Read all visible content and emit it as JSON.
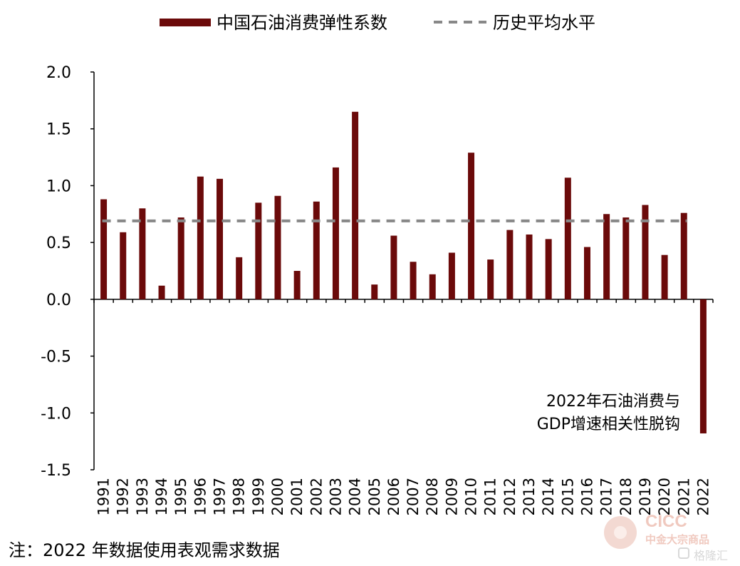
{
  "chart_data": {
    "type": "bar",
    "legend": [
      {
        "label": "中国石油消费弹性系数",
        "style": "bar",
        "color": "#6b0a0a"
      },
      {
        "label": "历史平均水平",
        "style": "dashed-line",
        "color": "#888888"
      }
    ],
    "legend_position": "top",
    "categories": [
      "1991",
      "1992",
      "1993",
      "1994",
      "1995",
      "1996",
      "1997",
      "1998",
      "1999",
      "2000",
      "2001",
      "2002",
      "2003",
      "2004",
      "2005",
      "2006",
      "2007",
      "2008",
      "2009",
      "2010",
      "2011",
      "2012",
      "2013",
      "2014",
      "2015",
      "2016",
      "2017",
      "2018",
      "2019",
      "2020",
      "2021",
      "2022"
    ],
    "series": [
      {
        "name": "中国石油消费弹性系数",
        "values": [
          0.88,
          0.59,
          0.8,
          0.12,
          0.72,
          1.08,
          1.06,
          0.37,
          0.85,
          0.91,
          0.25,
          0.86,
          1.16,
          1.65,
          0.13,
          0.56,
          0.33,
          0.22,
          0.41,
          1.29,
          0.35,
          0.61,
          0.57,
          0.53,
          1.07,
          0.46,
          0.75,
          0.72,
          0.83,
          0.39,
          0.76,
          -1.18
        ]
      }
    ],
    "average": {
      "name": "历史平均水平",
      "value": 0.69
    },
    "ylim": [
      -1.5,
      2.0
    ],
    "yticks": [
      "2.0",
      "1.5",
      "1.0",
      "0.5",
      "0.0",
      "-0.5",
      "-1.0",
      "-1.5"
    ],
    "ytick_values": [
      2.0,
      1.5,
      1.0,
      0.5,
      0.0,
      -0.5,
      -1.0,
      -1.5
    ],
    "xlabel": "",
    "ylabel": "",
    "grid": false,
    "annotation": [
      "2022年石油消费与",
      "GDP增速相关性脱钩"
    ],
    "colors": {
      "bar": "#6b0a0a",
      "average": "#888888",
      "axis": "#000000"
    }
  },
  "note": "注：2022 年数据使用表观需求数据",
  "watermark": {
    "brand": "CICC",
    "sub": "中金大宗商品",
    "sub2": "格隆汇"
  }
}
